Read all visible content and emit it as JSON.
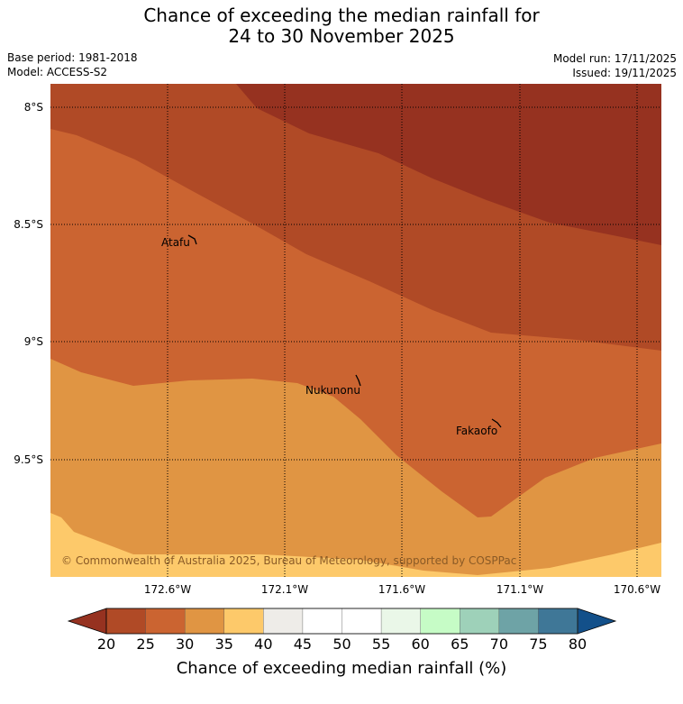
{
  "title_line1": "Chance of exceeding the median rainfall for",
  "title_line2": "24 to 30 November 2025",
  "base_period": "Base period: 1981-2018",
  "model": "Model: ACCESS-S2",
  "model_run": "Model run: 17/11/2025",
  "issued": "Issued: 19/11/2025",
  "copyright": "© Commonwealth of Australia 2025, Bureau of Meteorology, supported by COSPPac",
  "map": {
    "lon_ticks": [
      "172.6°W",
      "172.1°W",
      "171.6°W",
      "171.1°W",
      "170.6°W"
    ],
    "lat_ticks": [
      "8°S",
      "8.5°S",
      "9°S",
      "9.5°S"
    ],
    "places": [
      {
        "name": "Atafu"
      },
      {
        "name": "Nukunonu"
      },
      {
        "name": "Fakaofo"
      }
    ],
    "colors": {
      "band_15_20": "#963220",
      "band_20_25": "#b04a26",
      "band_25_30": "#cb6431",
      "band_30_35": "#e09543",
      "band_35_40": "#fdc96a"
    }
  },
  "colorbar": {
    "title": "Chance of exceeding median rainfall (%)",
    "labels": [
      "20",
      "25",
      "30",
      "35",
      "40",
      "45",
      "50",
      "55",
      "60",
      "65",
      "70",
      "75",
      "80"
    ],
    "low_extend_color": "#963220",
    "high_extend_color": "#13508a",
    "colors": [
      "#b04a26",
      "#cb6431",
      "#e09543",
      "#fdc96a",
      "#eeece8",
      "#ffffff",
      "#ffffff",
      "#eaf7e8",
      "#c6fcc6",
      "#9ed1b9",
      "#6ea3a6",
      "#3f7797"
    ]
  }
}
